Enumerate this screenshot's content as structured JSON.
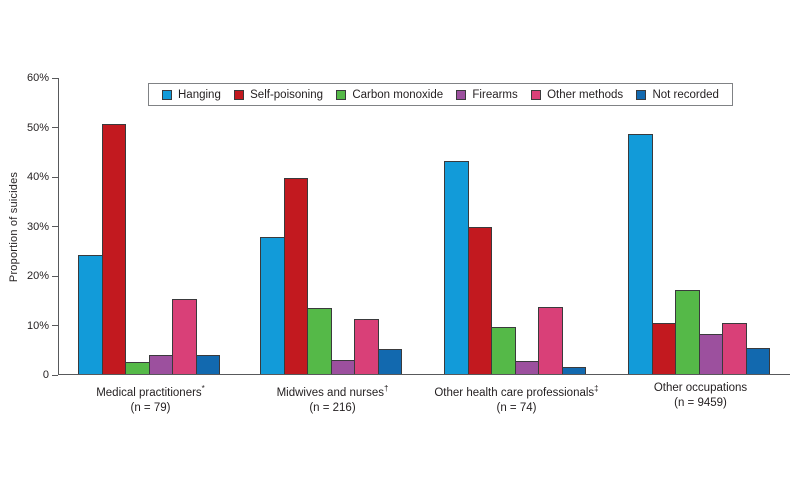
{
  "chart_data": {
    "type": "bar",
    "title": "",
    "xlabel": "",
    "ylabel": "Proportion of suicides",
    "ylim": [
      0,
      60
    ],
    "ytick_labels": [
      "60%",
      "50%",
      "40%",
      "30%",
      "20%",
      "10%",
      "0"
    ],
    "grid": false,
    "legend_position": "top-inside",
    "categories": [
      {
        "name": "Medical practitioners",
        "marker": "*",
        "n_label": "(n = 79)"
      },
      {
        "name": "Midwives and nurses",
        "marker": "†",
        "n_label": "(n = 216)"
      },
      {
        "name": "Other health care professionals",
        "marker": "‡",
        "n_label": "(n = 74)"
      },
      {
        "name": "Other occupations",
        "marker": "",
        "n_label": "(n = 9459)"
      }
    ],
    "series": [
      {
        "name": "Hanging",
        "color": "#129BD9",
        "values": [
          24.1,
          27.8,
          43.2,
          48.7
        ]
      },
      {
        "name": "Self-poisoning",
        "color": "#C2191F",
        "values": [
          50.6,
          39.8,
          29.7,
          10.3
        ]
      },
      {
        "name": "Carbon monoxide",
        "color": "#55B948",
        "values": [
          2.5,
          13.4,
          9.5,
          17.0
        ]
      },
      {
        "name": "Firearms",
        "color": "#9C509E",
        "values": [
          3.8,
          2.8,
          2.7,
          8.1
        ]
      },
      {
        "name": "Other methods",
        "color": "#D94078",
        "values": [
          15.2,
          11.1,
          13.5,
          10.4
        ]
      },
      {
        "name": "Not recorded",
        "color": "#1269AF",
        "values": [
          3.8,
          5.1,
          1.4,
          5.3
        ]
      }
    ],
    "colors": {
      "axis": "#58595B",
      "text": "#231F20",
      "bar_border": "#3A3A3C",
      "legend_border": "#808285"
    }
  }
}
